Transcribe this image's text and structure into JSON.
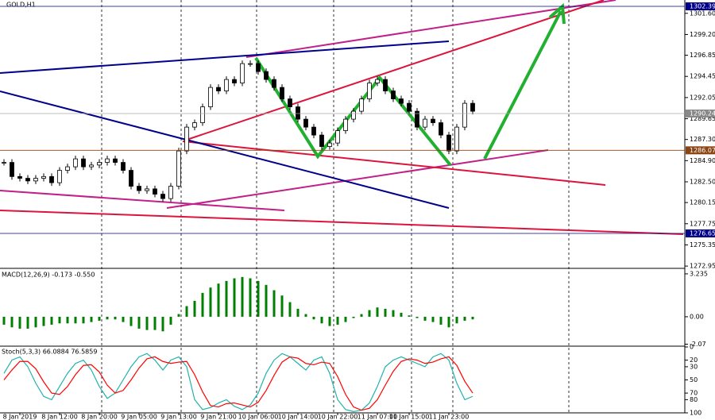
{
  "chart_data": [
    {
      "type": "candlestick",
      "title": "GOLD,H1",
      "categories": [
        null,
        null,
        "8 Jan 2019",
        null,
        null,
        null,
        null,
        "8 Jan 12:00",
        null,
        null,
        null,
        null,
        "8 Jan 20:00",
        null,
        null,
        null,
        null,
        "9 Jan 05:00",
        null,
        null,
        null,
        null,
        "9 Jan 13:00",
        null,
        null,
        null,
        null,
        "9 Jan 21:00",
        null,
        null,
        null,
        null,
        "10 Jan 06:00",
        null,
        null,
        null,
        null,
        "10 Jan 14:00",
        null,
        null,
        null,
        null,
        "10 Jan 22:00",
        null,
        null,
        null,
        null,
        "11 Jan 07:00",
        null,
        null,
        null,
        "11 Jan 15:00",
        null,
        null,
        null,
        null,
        "11 Jan 23:00",
        null,
        null,
        null
      ],
      "values": [
        1284.7,
        1283.1,
        1282.9,
        1282.6,
        1282.9,
        1283.1,
        1282.4,
        1283.8,
        1284.2,
        1285.1,
        1284.2,
        1284.4,
        1284.7,
        1285.1,
        1284.7,
        1283.8,
        1282.0,
        1281.5,
        1281.7,
        1281.1,
        1280.6,
        1282.0,
        1286.0,
        1288.7,
        1289.2,
        1291.0,
        1293.2,
        1292.8,
        1294.1,
        1293.7,
        1295.9,
        1295.9,
        1295.0,
        1294.1,
        1293.2,
        1291.9,
        1291.0,
        1289.6,
        1288.7,
        1287.8,
        1286.5,
        1286.9,
        1288.3,
        1289.6,
        1290.5,
        1291.9,
        1293.7,
        1294.1,
        1292.8,
        1291.9,
        1291.4,
        1290.5,
        1288.7,
        1289.6,
        1289.2,
        1287.8,
        1286.0,
        1288.7,
        1291.4,
        1290.5
      ],
      "ylim": [
        1303.11,
        1272.78
      ],
      "yticks": [
        {
          "value": 1301.6,
          "label": "1301.60"
        },
        {
          "value": 1299.2,
          "label": "1299.20"
        },
        1296.85,
        1294.45,
        1292.05,
        1289.65,
        {
          "value": 1287.3,
          "label": "1287.30"
        },
        {
          "value": 1284.9,
          "label": "1284.90"
        },
        {
          "value": 1282.5,
          "label": "1282.50"
        },
        1280.15,
        1277.75,
        1275.35,
        1272.95
      ],
      "price_lines": [
        1302.39,
        1290.24,
        1286.07,
        1276.65
      ]
    },
    {
      "type": "histogram",
      "title": "MACD(12,26,9) -0.173 -0.550",
      "color": "#008000",
      "values": [
        -0.6,
        -0.8,
        -0.9,
        -0.9,
        -0.8,
        -0.7,
        -0.6,
        -0.5,
        -0.5,
        -0.5,
        -0.5,
        -0.4,
        -0.3,
        -0.2,
        -0.2,
        -0.4,
        -0.7,
        -0.9,
        -1.0,
        -1.0,
        -1.1,
        -0.6,
        0.2,
        0.8,
        1.2,
        1.8,
        2.2,
        2.5,
        2.7,
        2.9,
        3.0,
        2.9,
        2.7,
        2.4,
        2.0,
        1.6,
        1.1,
        0.6,
        0.2,
        -0.2,
        -0.5,
        -0.7,
        -0.6,
        -0.4,
        -0.1,
        0.2,
        0.5,
        0.7,
        0.6,
        0.5,
        0.3,
        0.1,
        -0.1,
        -0.3,
        -0.4,
        -0.6,
        -0.8,
        -0.5,
        -0.3,
        -0.2
      ],
      "ylim": [
        3.53,
        -2.16
      ],
      "yticks": [
        3.235,
        {
          "value": 0,
          "label": "0.00"
        },
        -2.07
      ]
    },
    {
      "type": "line",
      "title": "Stoch(5,3,3) 66.0884 76.5859",
      "series": [
        {
          "color": "#20b2aa",
          "values": [
            40,
            20,
            15,
            30,
            55,
            75,
            80,
            60,
            40,
            25,
            20,
            35,
            60,
            78,
            70,
            50,
            30,
            15,
            10,
            20,
            35,
            20,
            15,
            30,
            80,
            95,
            92,
            85,
            80,
            90,
            95,
            88,
            70,
            40,
            20,
            10,
            15,
            25,
            35,
            20,
            15,
            40,
            80,
            95,
            98,
            96,
            85,
            60,
            30,
            20,
            15,
            20,
            25,
            30,
            15,
            10,
            20,
            55,
            80,
            75
          ]
        },
        {
          "color": "#ff0000",
          "values": [
            50,
            35,
            22,
            22,
            33,
            53,
            70,
            72,
            60,
            42,
            28,
            27,
            38,
            58,
            70,
            66,
            50,
            32,
            18,
            15,
            22,
            25,
            23,
            22,
            42,
            68,
            89,
            91,
            86,
            85,
            88,
            91,
            84,
            66,
            43,
            23,
            15,
            17,
            25,
            27,
            23,
            25,
            45,
            72,
            91,
            96,
            93,
            80,
            58,
            37,
            22,
            18,
            20,
            25,
            23,
            18,
            15,
            28,
            52,
            70
          ]
        }
      ],
      "ylim": [
        0,
        100
      ],
      "yticks": [
        100,
        80,
        70,
        50,
        30,
        20,
        0
      ]
    }
  ]
}
